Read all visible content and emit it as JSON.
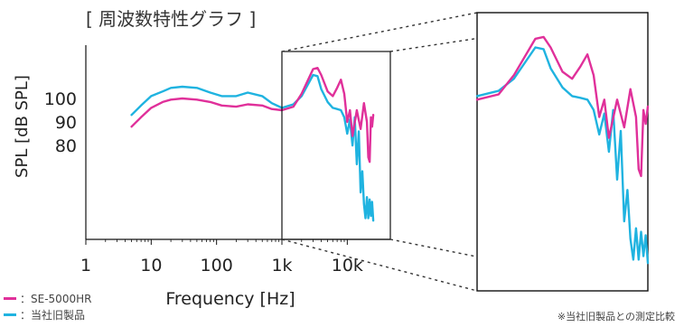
{
  "chart_data": {
    "type": "line",
    "title": "[ 周波数特性グラフ ]",
    "xlabel": "Frequency [Hz]",
    "ylabel": "SPL [dB SPL]",
    "x_scale": "log",
    "xlim": [
      1,
      25000
    ],
    "ylim": [
      40,
      120
    ],
    "x_ticks": [
      {
        "value": 1,
        "label": "1"
      },
      {
        "value": 10,
        "label": "10"
      },
      {
        "value": 100,
        "label": "100"
      },
      {
        "value": 1000,
        "label": "1k"
      },
      {
        "value": 10000,
        "label": "10k"
      }
    ],
    "y_ticks": [
      {
        "value": 80,
        "label": "80"
      },
      {
        "value": 90,
        "label": "90"
      },
      {
        "value": 100,
        "label": "100"
      }
    ],
    "grid": false,
    "legend_position": "bottom-left",
    "zoom_inset": {
      "xlim": [
        1000,
        25000
      ],
      "ylim": [
        40,
        120
      ]
    },
    "series": [
      {
        "name": "SE-5000HR",
        "color": "#e0309a",
        "points": [
          [
            5,
            88
          ],
          [
            7,
            92
          ],
          [
            10,
            96
          ],
          [
            15,
            98.5
          ],
          [
            20,
            99.5
          ],
          [
            30,
            100
          ],
          [
            50,
            99.5
          ],
          [
            80,
            98.5
          ],
          [
            120,
            97
          ],
          [
            200,
            96.5
          ],
          [
            300,
            97.5
          ],
          [
            500,
            97
          ],
          [
            700,
            95.5
          ],
          [
            1000,
            95
          ],
          [
            1500,
            96.5
          ],
          [
            2000,
            102
          ],
          [
            3000,
            112.5
          ],
          [
            3500,
            113
          ],
          [
            4000,
            110
          ],
          [
            5000,
            103
          ],
          [
            6000,
            101
          ],
          [
            7000,
            104.5
          ],
          [
            8000,
            108
          ],
          [
            9000,
            102
          ],
          [
            10000,
            90
          ],
          [
            11000,
            95
          ],
          [
            12000,
            84
          ],
          [
            14000,
            95
          ],
          [
            16000,
            87
          ],
          [
            18000,
            98
          ],
          [
            20000,
            90
          ],
          [
            21000,
            75
          ],
          [
            22000,
            73
          ],
          [
            23000,
            92
          ],
          [
            24000,
            88
          ],
          [
            25000,
            93
          ]
        ]
      },
      {
        "name": "当社旧製品",
        "color": "#1fb3e0",
        "points": [
          [
            5,
            93
          ],
          [
            7,
            97
          ],
          [
            10,
            101
          ],
          [
            15,
            103
          ],
          [
            20,
            104.5
          ],
          [
            30,
            105
          ],
          [
            50,
            104.5
          ],
          [
            80,
            102.5
          ],
          [
            120,
            101
          ],
          [
            200,
            101
          ],
          [
            300,
            102.5
          ],
          [
            500,
            101
          ],
          [
            700,
            98
          ],
          [
            1000,
            96
          ],
          [
            1500,
            97.5
          ],
          [
            2000,
            101
          ],
          [
            3000,
            110
          ],
          [
            3500,
            109.5
          ],
          [
            4000,
            104
          ],
          [
            5000,
            98.5
          ],
          [
            6000,
            96
          ],
          [
            7000,
            95.5
          ],
          [
            8000,
            95
          ],
          [
            9000,
            92
          ],
          [
            10000,
            85
          ],
          [
            11000,
            91
          ],
          [
            12000,
            80
          ],
          [
            13000,
            92
          ],
          [
            14000,
            72
          ],
          [
            15000,
            86
          ],
          [
            16000,
            60
          ],
          [
            17000,
            69
          ],
          [
            18000,
            55
          ],
          [
            19000,
            49
          ],
          [
            20000,
            58
          ],
          [
            21000,
            49
          ],
          [
            22000,
            57
          ],
          [
            23000,
            50
          ],
          [
            24000,
            56
          ],
          [
            25000,
            48
          ]
        ]
      }
    ],
    "note": "※当社旧製品との測定比較"
  }
}
